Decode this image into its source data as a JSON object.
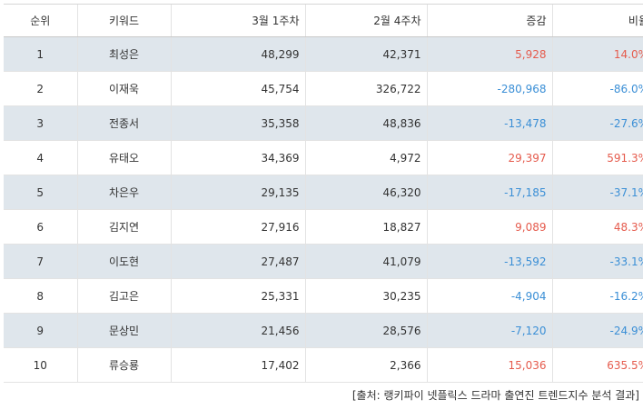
{
  "table": {
    "headers": [
      "순위",
      "키워드",
      "3월 1주차",
      "2월 4주차",
      "증감",
      "비율"
    ],
    "rows": [
      {
        "rank": "1",
        "keyword": "최성은",
        "mar_w1": "48,299",
        "feb_w4": "42,371",
        "change": "5,928",
        "ratio": "14.0%",
        "sign": "pos"
      },
      {
        "rank": "2",
        "keyword": "이재욱",
        "mar_w1": "45,754",
        "feb_w4": "326,722",
        "change": "-280,968",
        "ratio": "-86.0%",
        "sign": "neg"
      },
      {
        "rank": "3",
        "keyword": "전종서",
        "mar_w1": "35,358",
        "feb_w4": "48,836",
        "change": "-13,478",
        "ratio": "-27.6%",
        "sign": "neg"
      },
      {
        "rank": "4",
        "keyword": "유태오",
        "mar_w1": "34,369",
        "feb_w4": "4,972",
        "change": "29,397",
        "ratio": "591.3%",
        "sign": "pos"
      },
      {
        "rank": "5",
        "keyword": "차은우",
        "mar_w1": "29,135",
        "feb_w4": "46,320",
        "change": "-17,185",
        "ratio": "-37.1%",
        "sign": "neg"
      },
      {
        "rank": "6",
        "keyword": "김지연",
        "mar_w1": "27,916",
        "feb_w4": "18,827",
        "change": "9,089",
        "ratio": "48.3%",
        "sign": "pos"
      },
      {
        "rank": "7",
        "keyword": "이도현",
        "mar_w1": "27,487",
        "feb_w4": "41,079",
        "change": "-13,592",
        "ratio": "-33.1%",
        "sign": "neg"
      },
      {
        "rank": "8",
        "keyword": "김고은",
        "mar_w1": "25,331",
        "feb_w4": "30,235",
        "change": "-4,904",
        "ratio": "-16.2%",
        "sign": "neg"
      },
      {
        "rank": "9",
        "keyword": "문상민",
        "mar_w1": "21,456",
        "feb_w4": "28,576",
        "change": "-7,120",
        "ratio": "-24.9%",
        "sign": "neg"
      },
      {
        "rank": "10",
        "keyword": "류승룡",
        "mar_w1": "17,402",
        "feb_w4": "2,366",
        "change": "15,036",
        "ratio": "635.5%",
        "sign": "pos"
      }
    ]
  },
  "source": "[출처: 랭키파이 넷플릭스 드라마 출연진 트렌드지수 분석 결과]",
  "colors": {
    "positive": "#e55b4d",
    "negative": "#3b8fd6",
    "row_shade": "#dfe6ec"
  }
}
